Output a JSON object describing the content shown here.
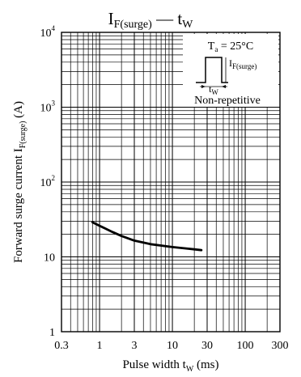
{
  "chart_data": {
    "type": "line",
    "title": {
      "main": "I",
      "main_sub": "F(surge)",
      "dash": " — ",
      "var": "t",
      "var_sub": "W"
    },
    "xlabel": {
      "text": "Pulse width  t",
      "sub": "W",
      "unit": "  (ms)"
    },
    "ylabel": {
      "text": "Forward surge current  I",
      "sub": "F(surge)",
      "unit": "  (A)"
    },
    "x_scale": "log",
    "y_scale": "log",
    "xlim": [
      0.3,
      300
    ],
    "ylim": [
      1,
      10000
    ],
    "x_ticks": [
      {
        "value": 0.3,
        "label": "0.3"
      },
      {
        "value": 1,
        "label": "1"
      },
      {
        "value": 3,
        "label": "3"
      },
      {
        "value": 10,
        "label": "10"
      },
      {
        "value": 30,
        "label": "30"
      },
      {
        "value": 100,
        "label": "100"
      },
      {
        "value": 300,
        "label": "300"
      }
    ],
    "y_ticks": [
      {
        "value": 1,
        "base": "1",
        "exp": ""
      },
      {
        "value": 10,
        "base": "10",
        "exp": ""
      },
      {
        "value": 100,
        "base": "10",
        "exp": "2"
      },
      {
        "value": 1000,
        "base": "10",
        "exp": "3"
      },
      {
        "value": 10000,
        "base": "10",
        "exp": "4"
      }
    ],
    "grid": true,
    "series": [
      {
        "x": [
          0.8,
          1,
          1.5,
          2,
          3,
          5,
          10,
          15,
          20,
          25
        ],
        "y": [
          29,
          26,
          21.5,
          19,
          16.5,
          14.8,
          13.5,
          13,
          12.6,
          12.3
        ]
      }
    ],
    "legend": {
      "condition": "T",
      "condition_sub": "a",
      "condition_rest": " = 25°C",
      "pulse_label": "I",
      "pulse_sub": "F(surge)",
      "width_label": "t",
      "width_sub": "W",
      "note": "Non-repetitive",
      "placement": "top-right"
    }
  }
}
